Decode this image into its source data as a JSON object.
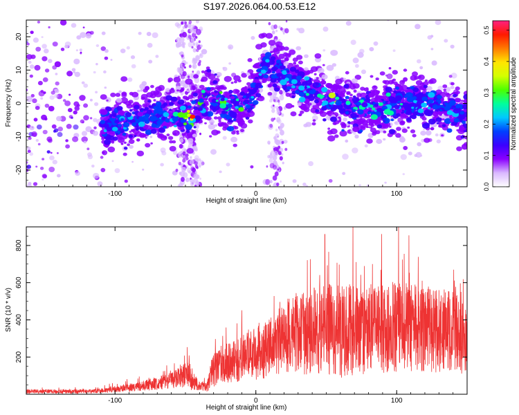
{
  "figure_title": "S197.2026.064.00.53.E12",
  "chart_data": [
    {
      "type": "heatmap",
      "title": "",
      "xlabel": "Height of straight line (km)",
      "ylabel": "Frequency (Hz)",
      "xlim": [
        -163,
        150
      ],
      "ylim": [
        -25,
        25
      ],
      "xticks": [
        -100,
        0,
        100
      ],
      "yticks": [
        -20,
        -10,
        0,
        10,
        20
      ],
      "colorbar": {
        "label": "Normalized spectral amplitude",
        "range": [
          0.0,
          0.53
        ],
        "ticks": [
          0.0,
          0.1,
          0.2,
          0.3,
          0.4,
          0.5
        ],
        "colors": [
          "#ffffff",
          "#d9b8ff",
          "#8a00ff",
          "#3b00ff",
          "#0040ff",
          "#00c8ff",
          "#00ff9c",
          "#4cff00",
          "#d4ff00",
          "#ffe400",
          "#ff7a00",
          "#ff1a00",
          "#ff2080"
        ]
      },
      "ridge": {
        "x": [
          -105,
          -90,
          -75,
          -60,
          -45,
          -35,
          -25,
          -15,
          -5,
          0,
          5,
          15,
          25,
          40,
          55,
          70,
          85,
          100,
          115,
          130,
          145
        ],
        "y": [
          -7,
          -5,
          -4,
          -3.5,
          -4,
          2,
          1,
          -2,
          1,
          5,
          11,
          10,
          7,
          3,
          0,
          -1,
          -2,
          0,
          0,
          -1,
          -3
        ],
        "peak_amplitude": [
          0.22,
          0.24,
          0.2,
          0.26,
          0.5,
          0.3,
          0.3,
          0.35,
          0.3,
          0.2,
          0.28,
          0.25,
          0.22,
          0.3,
          0.38,
          0.3,
          0.28,
          0.3,
          0.22,
          0.25,
          0.2
        ]
      }
    },
    {
      "type": "line",
      "title": "",
      "xlabel": "Height of straight line (km)",
      "ylabel": "SNR (10 * v/v)",
      "xlim": [
        -163,
        150
      ],
      "ylim": [
        0,
        900
      ],
      "xticks": [
        -100,
        0,
        100
      ],
      "yticks": [
        200,
        400,
        600,
        800
      ],
      "color": "#ee3333",
      "envelope": {
        "x": [
          -163,
          -120,
          -100,
          -90,
          -80,
          -70,
          -60,
          -50,
          -45,
          -40,
          -35,
          -30,
          -25,
          -20,
          -15,
          -10,
          -5,
          0,
          10,
          20,
          25,
          30,
          40,
          50,
          60,
          80,
          100,
          120,
          140,
          150
        ],
        "mean": [
          15,
          15,
          25,
          35,
          45,
          60,
          75,
          110,
          70,
          45,
          40,
          130,
          160,
          170,
          180,
          190,
          210,
          220,
          245,
          300,
          320,
          330,
          340,
          350,
          340,
          350,
          360,
          350,
          340,
          330
        ],
        "spread": [
          12,
          12,
          18,
          25,
          30,
          40,
          50,
          80,
          60,
          25,
          30,
          100,
          110,
          120,
          130,
          140,
          150,
          160,
          180,
          200,
          230,
          250,
          260,
          280,
          280,
          270,
          270,
          260,
          250,
          250
        ],
        "peak": [
          860,
          49
        ]
      }
    }
  ]
}
